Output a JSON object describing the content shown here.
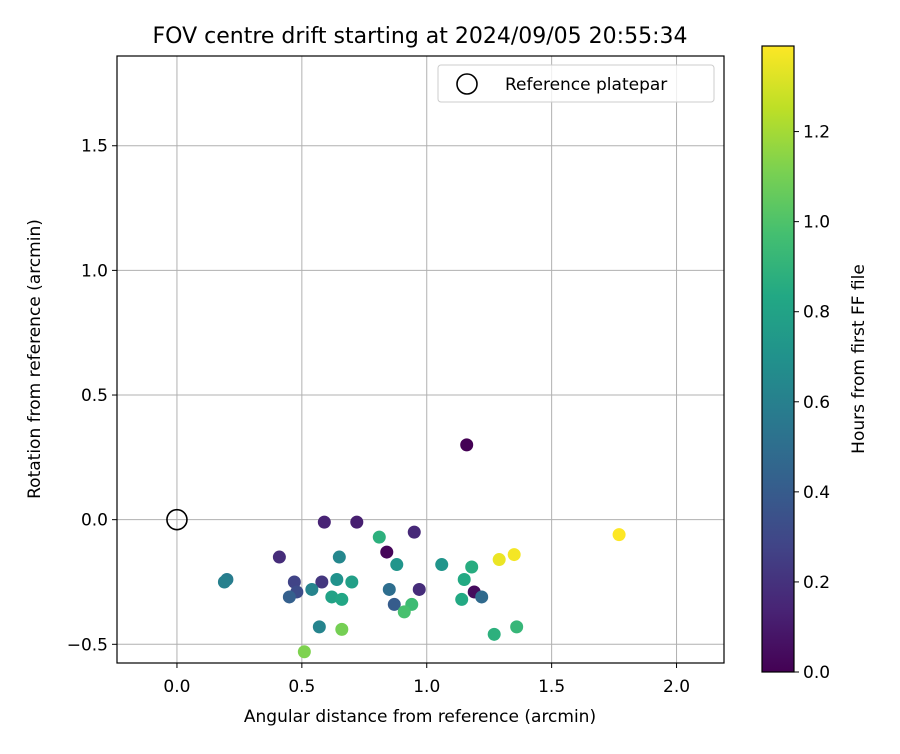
{
  "chart_data": {
    "type": "scatter",
    "title": "FOV centre drift starting at 2024/09/05 20:55:34",
    "xlabel": "Angular distance from reference (arcmin)",
    "ylabel": "Rotation from reference (arcmin)",
    "xlim": [
      -0.24,
      2.19
    ],
    "ylim": [
      -0.575,
      1.86
    ],
    "x_ticks": [
      0.0,
      0.5,
      1.0,
      1.5,
      2.0
    ],
    "x_tick_labels": [
      "0.0",
      "0.5",
      "1.0",
      "1.5",
      "2.0"
    ],
    "y_ticks": [
      -0.5,
      0.0,
      0.5,
      1.0,
      1.5
    ],
    "y_tick_labels": [
      "−0.5",
      "0.0",
      "0.5",
      "1.0",
      "1.5"
    ],
    "grid": true,
    "legend": {
      "placement": "upper-right",
      "entries": [
        {
          "label": "Reference platepar",
          "marker": "hollow-circle",
          "color": "#000000"
        }
      ]
    },
    "reference_point": {
      "x": 0.0,
      "y": 0.0
    },
    "colorbar": {
      "label": "Hours from first FF file",
      "colormap": "viridis",
      "range": [
        0.0,
        1.39
      ],
      "ticks": [
        0.0,
        0.2,
        0.4,
        0.6,
        0.8,
        1.0,
        1.2
      ],
      "tick_labels": [
        "0.0",
        "0.2",
        "0.4",
        "0.6",
        "0.8",
        "1.0",
        "1.2"
      ]
    },
    "series": [
      {
        "points": [
          {
            "x": 1.16,
            "y": 0.3,
            "c": 0.0
          },
          {
            "x": 0.84,
            "y": -0.13,
            "c": 0.02
          },
          {
            "x": 1.19,
            "y": -0.29,
            "c": 0.04
          },
          {
            "x": 0.72,
            "y": -0.01,
            "c": 0.12
          },
          {
            "x": 0.59,
            "y": -0.01,
            "c": 0.14
          },
          {
            "x": 0.95,
            "y": -0.05,
            "c": 0.16
          },
          {
            "x": 0.97,
            "y": -0.28,
            "c": 0.18
          },
          {
            "x": 0.41,
            "y": -0.15,
            "c": 0.18
          },
          {
            "x": 0.58,
            "y": -0.25,
            "c": 0.22
          },
          {
            "x": 0.47,
            "y": -0.25,
            "c": 0.28
          },
          {
            "x": 0.48,
            "y": -0.29,
            "c": 0.32
          },
          {
            "x": 0.45,
            "y": -0.31,
            "c": 0.42
          },
          {
            "x": 0.87,
            "y": -0.34,
            "c": 0.4
          },
          {
            "x": 0.85,
            "y": -0.28,
            "c": 0.5
          },
          {
            "x": 1.22,
            "y": -0.31,
            "c": 0.48
          },
          {
            "x": 0.2,
            "y": -0.24,
            "c": 0.58
          },
          {
            "x": 0.19,
            "y": -0.25,
            "c": 0.6
          },
          {
            "x": 0.54,
            "y": -0.28,
            "c": 0.62
          },
          {
            "x": 0.57,
            "y": -0.43,
            "c": 0.62
          },
          {
            "x": 0.65,
            "y": -0.15,
            "c": 0.64
          },
          {
            "x": 0.64,
            "y": -0.24,
            "c": 0.7
          },
          {
            "x": 0.88,
            "y": -0.18,
            "c": 0.72
          },
          {
            "x": 1.06,
            "y": -0.18,
            "c": 0.72
          },
          {
            "x": 0.7,
            "y": -0.25,
            "c": 0.78
          },
          {
            "x": 0.62,
            "y": -0.31,
            "c": 0.8
          },
          {
            "x": 0.66,
            "y": -0.32,
            "c": 0.82
          },
          {
            "x": 1.14,
            "y": -0.32,
            "c": 0.84
          },
          {
            "x": 1.15,
            "y": -0.24,
            "c": 0.84
          },
          {
            "x": 1.18,
            "y": -0.19,
            "c": 0.86
          },
          {
            "x": 0.81,
            "y": -0.07,
            "c": 0.88
          },
          {
            "x": 1.27,
            "y": -0.46,
            "c": 0.88
          },
          {
            "x": 1.36,
            "y": -0.43,
            "c": 0.92
          },
          {
            "x": 0.94,
            "y": -0.34,
            "c": 0.95
          },
          {
            "x": 0.91,
            "y": -0.37,
            "c": 0.98
          },
          {
            "x": 0.66,
            "y": -0.44,
            "c": 1.1
          },
          {
            "x": 0.51,
            "y": -0.53,
            "c": 1.12
          },
          {
            "x": 1.29,
            "y": -0.16,
            "c": 1.35
          },
          {
            "x": 1.35,
            "y": -0.14,
            "c": 1.37
          },
          {
            "x": 1.77,
            "y": -0.06,
            "c": 1.39
          }
        ]
      }
    ]
  }
}
